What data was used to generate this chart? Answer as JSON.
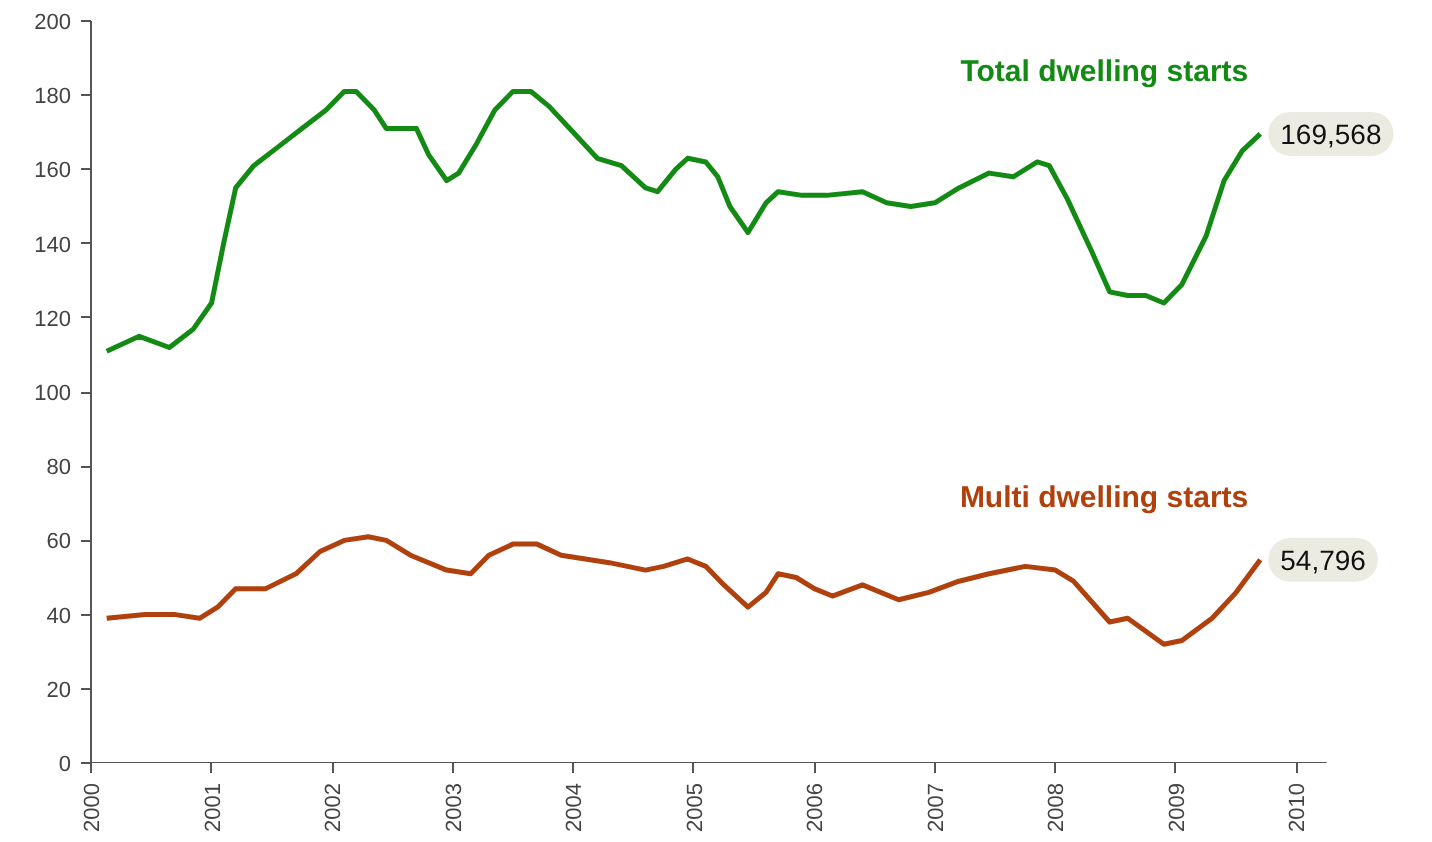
{
  "chart_data": {
    "type": "line",
    "xlim": [
      2000,
      2010.25
    ],
    "xticks": [
      2000,
      2001,
      2002,
      2003,
      2004,
      2005,
      2006,
      2007,
      2008,
      2009,
      2010
    ],
    "ylim": [
      0,
      200
    ],
    "yticks": [
      0,
      20,
      40,
      60,
      80,
      100,
      120,
      140,
      160,
      180,
      200
    ],
    "grid": false,
    "legend": false,
    "marker": "none",
    "line_style": "solid",
    "series": [
      {
        "name": "Total dwelling starts",
        "color": "#138a13",
        "x": [
          2000.13,
          2000.4,
          2000.65,
          2000.85,
          2001.0,
          2001.1,
          2001.2,
          2001.35,
          2001.55,
          2001.75,
          2001.95,
          2002.1,
          2002.2,
          2002.35,
          2002.45,
          2002.55,
          2002.7,
          2002.8,
          2002.95,
          2003.05,
          2003.2,
          2003.35,
          2003.5,
          2003.65,
          2003.8,
          2004.0,
          2004.2,
          2004.4,
          2004.6,
          2004.7,
          2004.85,
          2004.95,
          2005.1,
          2005.2,
          2005.3,
          2005.45,
          2005.6,
          2005.7,
          2005.9,
          2006.1,
          2006.4,
          2006.6,
          2006.8,
          2007.0,
          2007.2,
          2007.45,
          2007.65,
          2007.85,
          2007.95,
          2008.1,
          2008.3,
          2008.45,
          2008.6,
          2008.75,
          2008.9,
          2009.05,
          2009.25,
          2009.4,
          2009.55,
          2009.7
        ],
        "values": [
          111,
          115,
          112,
          117,
          124,
          140,
          155,
          161,
          166,
          171,
          176,
          181,
          181,
          176,
          171,
          171,
          171,
          164,
          157,
          159,
          167,
          176,
          181,
          181,
          177,
          170,
          163,
          161,
          155,
          154,
          160,
          163,
          162,
          158,
          150,
          143,
          151,
          154,
          153,
          153,
          154,
          151,
          150,
          151,
          155,
          159,
          158,
          162,
          161,
          152,
          138,
          127,
          126,
          126,
          124,
          129,
          142,
          157,
          165,
          169.568
        ]
      },
      {
        "name": "Multi dwelling starts",
        "color": "#b0400c",
        "x": [
          2000.13,
          2000.45,
          2000.7,
          2000.9,
          2001.05,
          2001.2,
          2001.3,
          2001.45,
          2001.7,
          2001.9,
          2002.1,
          2002.3,
          2002.45,
          2002.65,
          2002.95,
          2003.15,
          2003.3,
          2003.5,
          2003.7,
          2003.9,
          2004.3,
          2004.6,
          2004.75,
          2004.95,
          2005.1,
          2005.25,
          2005.45,
          2005.6,
          2005.7,
          2005.85,
          2006.0,
          2006.15,
          2006.4,
          2006.7,
          2006.95,
          2007.2,
          2007.45,
          2007.75,
          2008.0,
          2008.15,
          2008.45,
          2008.6,
          2008.9,
          2009.05,
          2009.3,
          2009.5,
          2009.7
        ],
        "values": [
          39,
          40,
          40,
          39,
          42,
          47,
          47,
          47,
          51,
          57,
          60,
          61,
          60,
          56,
          52,
          51,
          56,
          59,
          59,
          56,
          54,
          52,
          53,
          55,
          53,
          48,
          42,
          46,
          51,
          50,
          47,
          45,
          48,
          44,
          46,
          49,
          51,
          53,
          52,
          49,
          38,
          39,
          32,
          33,
          39,
          46,
          54.796
        ]
      }
    ],
    "annotations": [
      {
        "text": "169,568",
        "x": 2009.7,
        "y": 169.568
      },
      {
        "text": "54,796",
        "x": 2009.7,
        "y": 54.796
      }
    ]
  }
}
